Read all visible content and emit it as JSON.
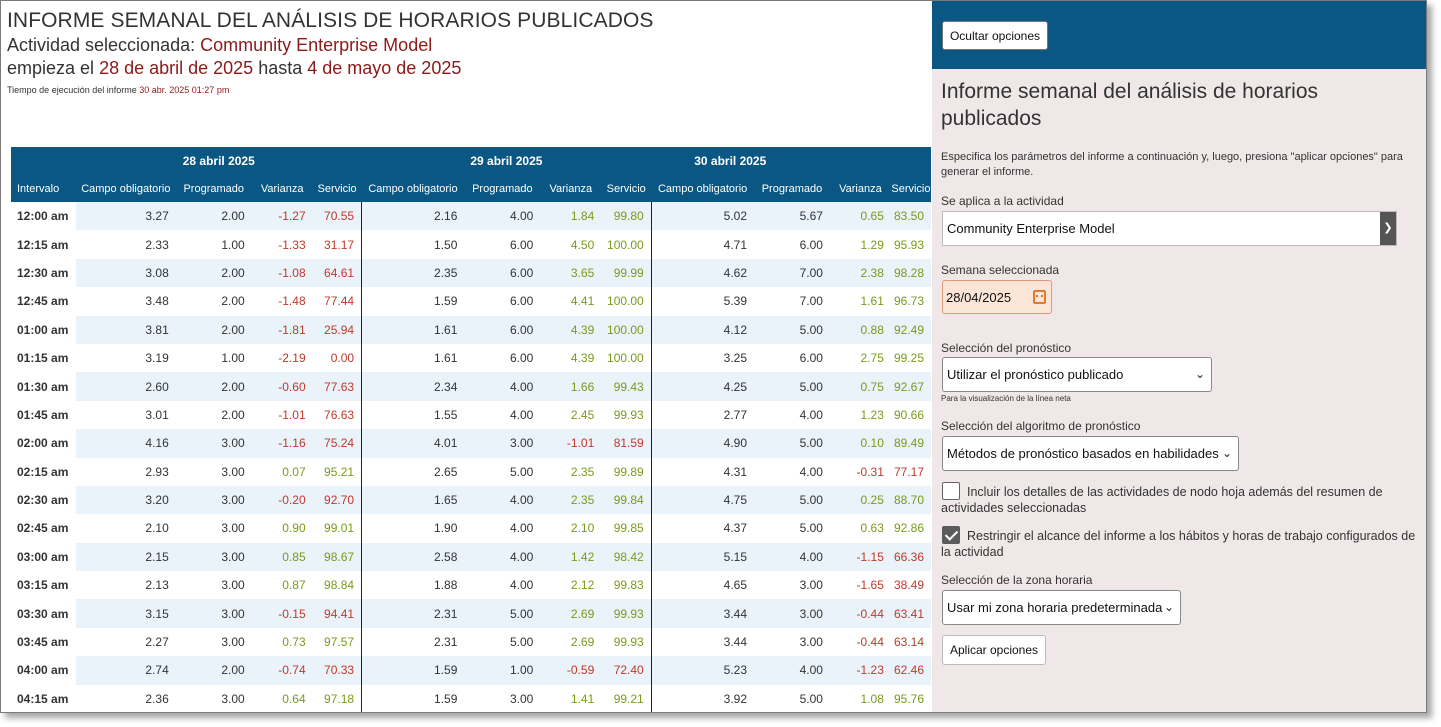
{
  "report": {
    "title": "INFORME SEMANAL DEL ANÁLISIS DE HORARIOS PUBLICADOS",
    "activity_prefix": "Actividad seleccionada: ",
    "activity_name": "Community Enterprise Model",
    "range_prefix": "empieza el ",
    "start_date": "28 de abril de 2025",
    "range_mid": " hasta ",
    "end_date": "4 de mayo de 2025",
    "exec_label": "Tiempo de ejecución del informe ",
    "exec_time": "30 abr. 2025 01:27 pm"
  },
  "table": {
    "interval_header": "Intervalo",
    "dates": [
      "28 abril 2025",
      "29 abril 2025",
      "30 abril 2025"
    ],
    "subheaders": [
      "Campo obligatorio",
      "Programado",
      "Varianza",
      "Servicio"
    ],
    "rows": [
      {
        "time": "12:00 am",
        "days": [
          [
            "3.27",
            "2.00",
            "-1.27",
            "70.55"
          ],
          [
            "2.16",
            "4.00",
            "1.84",
            "99.80"
          ],
          [
            "5.02",
            "5.67",
            "0.65",
            "83.50"
          ]
        ]
      },
      {
        "time": "12:15 am",
        "days": [
          [
            "2.33",
            "1.00",
            "-1.33",
            "31.17"
          ],
          [
            "1.50",
            "6.00",
            "4.50",
            "100.00"
          ],
          [
            "4.71",
            "6.00",
            "1.29",
            "95.93"
          ]
        ]
      },
      {
        "time": "12:30 am",
        "days": [
          [
            "3.08",
            "2.00",
            "-1.08",
            "64.61"
          ],
          [
            "2.35",
            "6.00",
            "3.65",
            "99.99"
          ],
          [
            "4.62",
            "7.00",
            "2.38",
            "98.28"
          ]
        ]
      },
      {
        "time": "12:45 am",
        "days": [
          [
            "3.48",
            "2.00",
            "-1.48",
            "77.44"
          ],
          [
            "1.59",
            "6.00",
            "4.41",
            "100.00"
          ],
          [
            "5.39",
            "7.00",
            "1.61",
            "96.73"
          ]
        ]
      },
      {
        "time": "01:00 am",
        "days": [
          [
            "3.81",
            "2.00",
            "-1.81",
            "25.94"
          ],
          [
            "1.61",
            "6.00",
            "4.39",
            "100.00"
          ],
          [
            "4.12",
            "5.00",
            "0.88",
            "92.49"
          ]
        ]
      },
      {
        "time": "01:15 am",
        "days": [
          [
            "3.19",
            "1.00",
            "-2.19",
            "0.00"
          ],
          [
            "1.61",
            "6.00",
            "4.39",
            "100.00"
          ],
          [
            "3.25",
            "6.00",
            "2.75",
            "99.25"
          ]
        ]
      },
      {
        "time": "01:30 am",
        "days": [
          [
            "2.60",
            "2.00",
            "-0.60",
            "77.63"
          ],
          [
            "2.34",
            "4.00",
            "1.66",
            "99.43"
          ],
          [
            "4.25",
            "5.00",
            "0.75",
            "92.67"
          ]
        ]
      },
      {
        "time": "01:45 am",
        "days": [
          [
            "3.01",
            "2.00",
            "-1.01",
            "76.63"
          ],
          [
            "1.55",
            "4.00",
            "2.45",
            "99.93"
          ],
          [
            "2.77",
            "4.00",
            "1.23",
            "90.66"
          ]
        ]
      },
      {
        "time": "02:00 am",
        "days": [
          [
            "4.16",
            "3.00",
            "-1.16",
            "75.24"
          ],
          [
            "4.01",
            "3.00",
            "-1.01",
            "81.59"
          ],
          [
            "4.90",
            "5.00",
            "0.10",
            "89.49"
          ]
        ]
      },
      {
        "time": "02:15 am",
        "days": [
          [
            "2.93",
            "3.00",
            "0.07",
            "95.21"
          ],
          [
            "2.65",
            "5.00",
            "2.35",
            "99.89"
          ],
          [
            "4.31",
            "4.00",
            "-0.31",
            "77.17"
          ]
        ]
      },
      {
        "time": "02:30 am",
        "days": [
          [
            "3.20",
            "3.00",
            "-0.20",
            "92.70"
          ],
          [
            "1.65",
            "4.00",
            "2.35",
            "99.84"
          ],
          [
            "4.75",
            "5.00",
            "0.25",
            "88.70"
          ]
        ]
      },
      {
        "time": "02:45 am",
        "days": [
          [
            "2.10",
            "3.00",
            "0.90",
            "99.01"
          ],
          [
            "1.90",
            "4.00",
            "2.10",
            "99.85"
          ],
          [
            "4.37",
            "5.00",
            "0.63",
            "92.86"
          ]
        ]
      },
      {
        "time": "03:00 am",
        "days": [
          [
            "2.15",
            "3.00",
            "0.85",
            "98.67"
          ],
          [
            "2.58",
            "4.00",
            "1.42",
            "98.42"
          ],
          [
            "5.15",
            "4.00",
            "-1.15",
            "66.36"
          ]
        ]
      },
      {
        "time": "03:15 am",
        "days": [
          [
            "2.13",
            "3.00",
            "0.87",
            "98.84"
          ],
          [
            "1.88",
            "4.00",
            "2.12",
            "99.83"
          ],
          [
            "4.65",
            "3.00",
            "-1.65",
            "38.49"
          ]
        ]
      },
      {
        "time": "03:30 am",
        "days": [
          [
            "3.15",
            "3.00",
            "-0.15",
            "94.41"
          ],
          [
            "2.31",
            "5.00",
            "2.69",
            "99.93"
          ],
          [
            "3.44",
            "3.00",
            "-0.44",
            "63.41"
          ]
        ]
      },
      {
        "time": "03:45 am",
        "days": [
          [
            "2.27",
            "3.00",
            "0.73",
            "97.57"
          ],
          [
            "2.31",
            "5.00",
            "2.69",
            "99.93"
          ],
          [
            "3.44",
            "3.00",
            "-0.44",
            "63.14"
          ]
        ]
      },
      {
        "time": "04:00 am",
        "days": [
          [
            "2.74",
            "2.00",
            "-0.74",
            "70.33"
          ],
          [
            "1.59",
            "1.00",
            "-0.59",
            "72.40"
          ],
          [
            "5.23",
            "4.00",
            "-1.23",
            "62.46"
          ]
        ]
      },
      {
        "time": "04:15 am",
        "days": [
          [
            "2.36",
            "3.00",
            "0.64",
            "97.18"
          ],
          [
            "1.59",
            "3.00",
            "1.41",
            "99.21"
          ],
          [
            "3.92",
            "5.00",
            "1.08",
            "95.76"
          ]
        ]
      }
    ]
  },
  "panel": {
    "hide_button": "Ocultar opciones",
    "title": "Informe semanal del análisis de horarios publicados",
    "description": "Especifica los parámetros del informe a continuación y, luego, presiona \"aplicar opciones\" para generar el informe.",
    "activity_label": "Se aplica a la actividad",
    "activity_value": "Community Enterprise Model",
    "week_label": "Semana seleccionada",
    "week_value": "28/04/2025",
    "forecast_label": "Selección del pronóstico",
    "forecast_value": "Utilizar el pronóstico publicado",
    "forecast_hint": "Para la visualización de la línea neta",
    "algorithm_label": "Selección del algoritmo de pronóstico",
    "algorithm_value": "Métodos de pronóstico basados en habilidades",
    "include_details_label": "Incluir los detalles de las actividades de nodo hoja además del resumen de actividades seleccionadas",
    "include_details_checked": false,
    "restrict_label": "Restringir el alcance del informe a los hábitos y horas de trabajo configurados de la actividad",
    "restrict_checked": true,
    "timezone_label": "Selección de la zona horaria",
    "timezone_value": "Usar mi zona horaria predeterminada",
    "apply_button": "Aplicar opciones"
  },
  "colors": {
    "header_blue": "#0b5783",
    "accent_red": "#8b1a1a",
    "negative": "#c0392b",
    "positive": "#7a9a1a",
    "panel_bg": "#f0e8e8"
  }
}
